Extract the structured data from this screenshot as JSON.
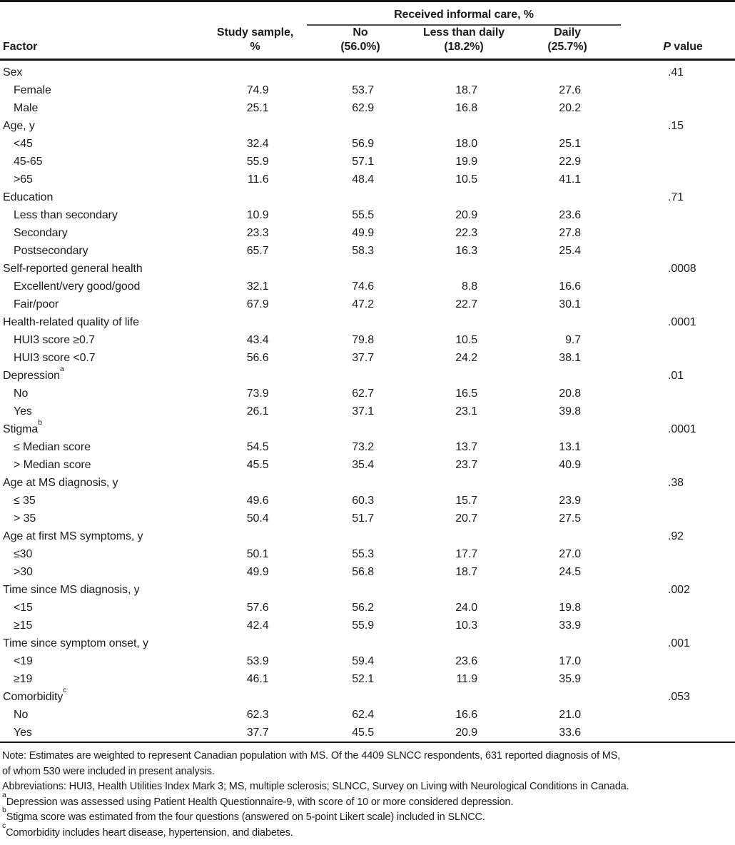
{
  "table": {
    "spanner": "Received informal care, %",
    "columns": {
      "factor": "Factor",
      "study_sample": [
        "Study sample,",
        "%"
      ],
      "no": [
        "No",
        "(56.0%)"
      ],
      "less_than_daily": [
        "Less than daily",
        "(18.2%)"
      ],
      "daily": [
        "Daily",
        "(25.7%)"
      ],
      "p_value": {
        "italic": "P",
        "rest": " value"
      }
    },
    "rows": [
      {
        "type": "group",
        "label": "Sex",
        "sup": "",
        "p": ".41"
      },
      {
        "type": "sub",
        "label": "Female",
        "values": [
          "74.9",
          "53.7",
          "18.7",
          "27.6"
        ]
      },
      {
        "type": "sub",
        "label": "Male",
        "values": [
          "25.1",
          "62.9",
          "16.8",
          "20.2"
        ]
      },
      {
        "type": "group",
        "label": "Age, y",
        "sup": "",
        "p": ".15"
      },
      {
        "type": "sub",
        "label": "<45",
        "values": [
          "32.4",
          "56.9",
          "18.0",
          "25.1"
        ]
      },
      {
        "type": "sub",
        "label": "45-65",
        "values": [
          "55.9",
          "57.1",
          "19.9",
          "22.9"
        ]
      },
      {
        "type": "sub",
        "label": ">65",
        "values": [
          "11.6",
          "48.4",
          "10.5",
          "41.1"
        ]
      },
      {
        "type": "group",
        "label": "Education",
        "sup": "",
        "p": ".71"
      },
      {
        "type": "sub",
        "label": "Less than secondary",
        "values": [
          "10.9",
          "55.5",
          "20.9",
          "23.6"
        ]
      },
      {
        "type": "sub",
        "label": "Secondary",
        "values": [
          "23.3",
          "49.9",
          "22.3",
          "27.8"
        ]
      },
      {
        "type": "sub",
        "label": "Postsecondary",
        "values": [
          "65.7",
          "58.3",
          "16.3",
          "25.4"
        ]
      },
      {
        "type": "group",
        "label": "Self-reported general health",
        "sup": "",
        "p": ".0008"
      },
      {
        "type": "sub",
        "label": "Excellent/very good/good",
        "values": [
          "32.1",
          "74.6",
          "8.8",
          "16.6"
        ]
      },
      {
        "type": "sub",
        "label": "Fair/poor",
        "values": [
          "67.9",
          "47.2",
          "22.7",
          "30.1"
        ]
      },
      {
        "type": "group",
        "label": "Health-related quality of life",
        "sup": "",
        "p": ".0001"
      },
      {
        "type": "sub",
        "label": "HUI3 score ≥0.7",
        "values": [
          "43.4",
          "79.8",
          "10.5",
          "9.7"
        ]
      },
      {
        "type": "sub",
        "label": "HUI3 score <0.7",
        "values": [
          "56.6",
          "37.7",
          "24.2",
          "38.1"
        ]
      },
      {
        "type": "group",
        "label": "Depression",
        "sup": "a",
        "p": ".01"
      },
      {
        "type": "sub",
        "label": "No",
        "values": [
          "73.9",
          "62.7",
          "16.5",
          "20.8"
        ]
      },
      {
        "type": "sub",
        "label": "Yes",
        "values": [
          "26.1",
          "37.1",
          "23.1",
          "39.8"
        ]
      },
      {
        "type": "group",
        "label": "Stigma",
        "sup": "b",
        "p": ".0001"
      },
      {
        "type": "sub",
        "label": "≤ Median score",
        "values": [
          "54.5",
          "73.2",
          "13.7",
          "13.1"
        ]
      },
      {
        "type": "sub",
        "label": "> Median score",
        "values": [
          "45.5",
          "35.4",
          "23.7",
          "40.9"
        ]
      },
      {
        "type": "group",
        "label": "Age at MS diagnosis, y",
        "sup": "",
        "p": ".38"
      },
      {
        "type": "sub",
        "label": "≤ 35",
        "values": [
          "49.6",
          "60.3",
          "15.7",
          "23.9"
        ]
      },
      {
        "type": "sub",
        "label": "> 35",
        "values": [
          "50.4",
          "51.7",
          "20.7",
          "27.5"
        ]
      },
      {
        "type": "group",
        "label": "Age at first MS symptoms, y",
        "sup": "",
        "p": ".92"
      },
      {
        "type": "sub",
        "label": "≤30",
        "values": [
          "50.1",
          "55.3",
          "17.7",
          "27.0"
        ]
      },
      {
        "type": "sub",
        "label": ">30",
        "values": [
          "49.9",
          "56.8",
          "18.7",
          "24.5"
        ]
      },
      {
        "type": "group",
        "label": "Time since MS diagnosis, y",
        "sup": "",
        "p": ".002"
      },
      {
        "type": "sub",
        "label": "<15",
        "values": [
          "57.6",
          "56.2",
          "24.0",
          "19.8"
        ]
      },
      {
        "type": "sub",
        "label": "≥15",
        "values": [
          "42.4",
          "55.9",
          "10.3",
          "33.9"
        ]
      },
      {
        "type": "group",
        "label": "Time since symptom onset, y",
        "sup": "",
        "p": ".001"
      },
      {
        "type": "sub",
        "label": "<19",
        "values": [
          "53.9",
          "59.4",
          "23.6",
          "17.0"
        ]
      },
      {
        "type": "sub",
        "label": "≥19",
        "values": [
          "46.1",
          "52.1",
          "11.9",
          "35.9"
        ]
      },
      {
        "type": "group",
        "label": "Comorbidity",
        "sup": "c",
        "p": ".053"
      },
      {
        "type": "sub",
        "label": "No",
        "values": [
          "62.3",
          "62.4",
          "16.6",
          "21.0"
        ]
      },
      {
        "type": "sub",
        "label": "Yes",
        "values": [
          "37.7",
          "45.5",
          "20.9",
          "33.6"
        ]
      }
    ]
  },
  "footnotes": [
    {
      "sup": "",
      "text": "Note: Estimates are weighted to represent Canadian population with MS. Of the 4409 SLNCC respondents, 631 reported diagnosis of MS,"
    },
    {
      "sup": "",
      "text": "of whom 530 were included in present analysis."
    },
    {
      "sup": "",
      "text": "Abbreviations: HUI3, Health Utilities Index Mark 3; MS, multiple sclerosis; SLNCC, Survey on Living with Neurological Conditions in Canada."
    },
    {
      "sup": "a",
      "text": "Depression was assessed using Patient Health Questionnaire-9, with score of 10 or more considered depression."
    },
    {
      "sup": "b",
      "text": "Stigma score was estimated from the four questions (answered on 5-point Likert scale) included in SLNCC."
    },
    {
      "sup": "c",
      "text": "Comorbidity includes heart disease, hypertension, and diabetes."
    }
  ]
}
